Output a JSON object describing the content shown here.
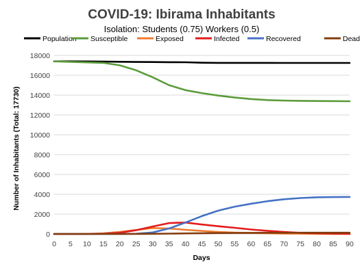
{
  "chart_data": {
    "type": "line",
    "title": "COVID-19: Ibirama Inhabitants",
    "subtitle": "Isolation: Students (0.75) Workers (0.5)",
    "xlabel": "Days",
    "ylabel": "Number of Inhabitants (Total: 17730)",
    "xlim": [
      0,
      90
    ],
    "ylim": [
      0,
      18000
    ],
    "x_ticks": [
      0,
      5,
      10,
      15,
      20,
      25,
      30,
      35,
      40,
      45,
      50,
      55,
      60,
      65,
      70,
      75,
      80,
      85,
      90
    ],
    "y_ticks": [
      0,
      2000,
      4000,
      6000,
      8000,
      10000,
      12000,
      14000,
      16000,
      18000
    ],
    "grid": true,
    "legend_position": "top",
    "x": [
      0,
      5,
      10,
      15,
      20,
      25,
      30,
      35,
      40,
      45,
      50,
      55,
      60,
      65,
      70,
      75,
      80,
      85,
      90
    ],
    "series": [
      {
        "name": "Population",
        "color": "#000000",
        "values": [
          17400,
          17400,
          17390,
          17380,
          17360,
          17340,
          17330,
          17320,
          17310,
          17260,
          17250,
          17250,
          17250,
          17250,
          17240,
          17240,
          17240,
          17240,
          17240
        ]
      },
      {
        "name": "Susceptible",
        "color": "#5b9b3a",
        "values": [
          17400,
          17350,
          17300,
          17250,
          17000,
          16500,
          15800,
          15000,
          14500,
          14200,
          13950,
          13750,
          13600,
          13500,
          13450,
          13420,
          13400,
          13390,
          13380
        ]
      },
      {
        "name": "Exposed",
        "color": "#ed7d31",
        "values": [
          0,
          0,
          10,
          60,
          200,
          400,
          600,
          550,
          420,
          300,
          200,
          130,
          90,
          60,
          40,
          25,
          15,
          10,
          5
        ]
      },
      {
        "name": "Infected",
        "color": "#e31a1c",
        "values": [
          0,
          0,
          0,
          20,
          120,
          380,
          750,
          1100,
          1150,
          950,
          780,
          620,
          450,
          320,
          200,
          110,
          60,
          30,
          15
        ]
      },
      {
        "name": "Recovered",
        "color": "#4472c4",
        "values": [
          0,
          0,
          0,
          0,
          0,
          20,
          150,
          550,
          1150,
          1800,
          2350,
          2750,
          3050,
          3300,
          3500,
          3620,
          3700,
          3720,
          3730
        ]
      },
      {
        "name": "Dead",
        "color": "#843c0c",
        "values": [
          0,
          0,
          0,
          0,
          0,
          5,
          15,
          35,
          55,
          75,
          90,
          100,
          110,
          115,
          120,
          122,
          124,
          125,
          125
        ]
      }
    ]
  }
}
